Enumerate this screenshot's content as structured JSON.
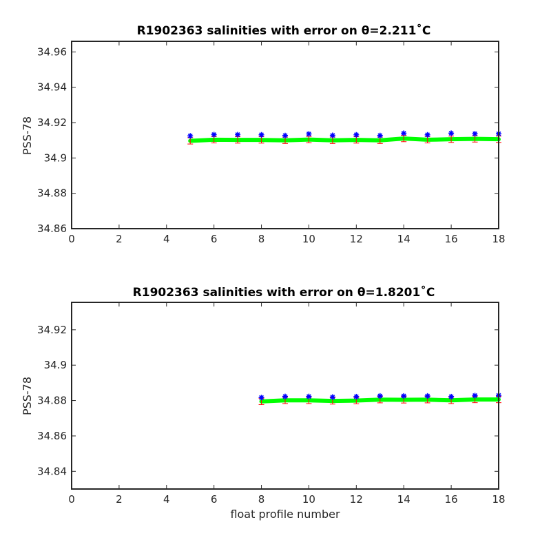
{
  "chart_data": [
    {
      "type": "scatter",
      "title": "R1902363 salinities with error on θ=2.211˚C",
      "xlabel": "",
      "ylabel": "PSS-78",
      "xlim": [
        0,
        18
      ],
      "ylim": [
        34.86,
        34.966
      ],
      "xticks": [
        0,
        2,
        4,
        6,
        8,
        10,
        12,
        14,
        16,
        18
      ],
      "yticks": [
        34.86,
        34.88,
        34.9,
        34.92,
        34.94,
        34.96
      ],
      "ytick_labels": [
        "34.86",
        "34.88",
        "34.9",
        "34.92",
        "34.94",
        "34.96"
      ],
      "grid": false,
      "x": [
        5,
        6,
        7,
        8,
        9,
        10,
        11,
        12,
        13,
        14,
        15,
        16,
        17,
        18
      ],
      "series": [
        {
          "kind": "markers",
          "marker": "asterisk",
          "color": "#0000ff",
          "values": [
            34.9125,
            34.9132,
            34.9132,
            34.9131,
            34.9127,
            34.9136,
            34.9128,
            34.9131,
            34.9127,
            34.914,
            34.9131,
            34.914,
            34.9137,
            34.9137
          ]
        },
        {
          "kind": "line",
          "color": "#00ff00",
          "values": [
            34.9097,
            34.9103,
            34.9102,
            34.9102,
            34.91,
            34.9104,
            34.91,
            34.9102,
            34.91,
            34.911,
            34.9103,
            34.9106,
            34.9108,
            34.9106
          ]
        },
        {
          "kind": "errorbar",
          "color": "#ff0000",
          "values": [
            34.9097,
            34.9103,
            34.9102,
            34.9102,
            34.91,
            34.9104,
            34.91,
            34.9102,
            34.91,
            34.911,
            34.9103,
            34.9106,
            34.9108,
            34.9106
          ],
          "errors": [
            0.0018,
            0.0018,
            0.0018,
            0.0018,
            0.0018,
            0.0018,
            0.0018,
            0.0018,
            0.0018,
            0.0018,
            0.0018,
            0.0018,
            0.0018,
            0.0018
          ]
        }
      ]
    },
    {
      "type": "scatter",
      "title": "R1902363 salinities with error on θ=1.8201˚C",
      "xlabel": "float profile number",
      "ylabel": "PSS-78",
      "xlim": [
        0,
        18
      ],
      "ylim": [
        34.83,
        34.9355
      ],
      "xticks": [
        0,
        2,
        4,
        6,
        8,
        10,
        12,
        14,
        16,
        18
      ],
      "yticks": [
        34.84,
        34.86,
        34.88,
        34.9,
        34.92
      ],
      "ytick_labels": [
        "34.84",
        "34.86",
        "34.88",
        "34.9",
        "34.92"
      ],
      "grid": false,
      "x": [
        8,
        9,
        10,
        11,
        12,
        13,
        14,
        15,
        16,
        17,
        18
      ],
      "series": [
        {
          "kind": "markers",
          "marker": "asterisk",
          "color": "#0000ff",
          "values": [
            34.8817,
            34.8823,
            34.8823,
            34.882,
            34.8822,
            34.8826,
            34.8826,
            34.8826,
            34.8822,
            34.8828,
            34.8829
          ]
        },
        {
          "kind": "line",
          "color": "#00ff00",
          "values": [
            34.8795,
            34.8801,
            34.8801,
            34.8798,
            34.88,
            34.8805,
            34.8804,
            34.8805,
            34.8801,
            34.8806,
            34.8806
          ]
        },
        {
          "kind": "errorbar",
          "color": "#ff0000",
          "values": [
            34.8795,
            34.8801,
            34.8801,
            34.8798,
            34.88,
            34.8805,
            34.8804,
            34.8805,
            34.8801,
            34.8806,
            34.8806
          ],
          "errors": [
            0.0018,
            0.0018,
            0.0018,
            0.0018,
            0.0018,
            0.0018,
            0.0018,
            0.0018,
            0.0018,
            0.0018,
            0.0018
          ]
        }
      ]
    }
  ]
}
